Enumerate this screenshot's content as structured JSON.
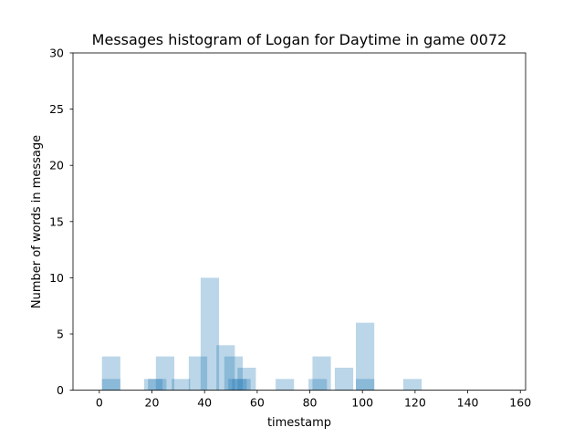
{
  "chart_data": {
    "type": "bar",
    "title": "Messages histogram of Logan for Daytime in game 0072",
    "xlabel": "timestamp",
    "ylabel": "Number of words in message",
    "xlim": [
      -10,
      162
    ],
    "ylim": [
      0,
      30
    ],
    "xticks": [
      0,
      20,
      40,
      60,
      80,
      100,
      120,
      140,
      160
    ],
    "yticks": [
      0,
      5,
      10,
      15,
      20,
      25,
      30
    ],
    "grid": false,
    "bar_color": "#1f77b4",
    "bar_opacity": 0.3,
    "bar_width": 7,
    "bars": [
      {
        "x": 4.5,
        "value": 3
      },
      {
        "x": 4.5,
        "value": 1
      },
      {
        "x": 20.5,
        "value": 1
      },
      {
        "x": 22,
        "value": 1
      },
      {
        "x": 25,
        "value": 3
      },
      {
        "x": 31,
        "value": 1
      },
      {
        "x": 37.5,
        "value": 3
      },
      {
        "x": 42,
        "value": 10
      },
      {
        "x": 48,
        "value": 4
      },
      {
        "x": 51,
        "value": 3
      },
      {
        "x": 52.5,
        "value": 1
      },
      {
        "x": 54,
        "value": 1
      },
      {
        "x": 56,
        "value": 2
      },
      {
        "x": 70.5,
        "value": 1
      },
      {
        "x": 83,
        "value": 1
      },
      {
        "x": 84.5,
        "value": 3
      },
      {
        "x": 93,
        "value": 2
      },
      {
        "x": 101,
        "value": 6
      },
      {
        "x": 101,
        "value": 1
      },
      {
        "x": 119,
        "value": 1
      }
    ]
  }
}
